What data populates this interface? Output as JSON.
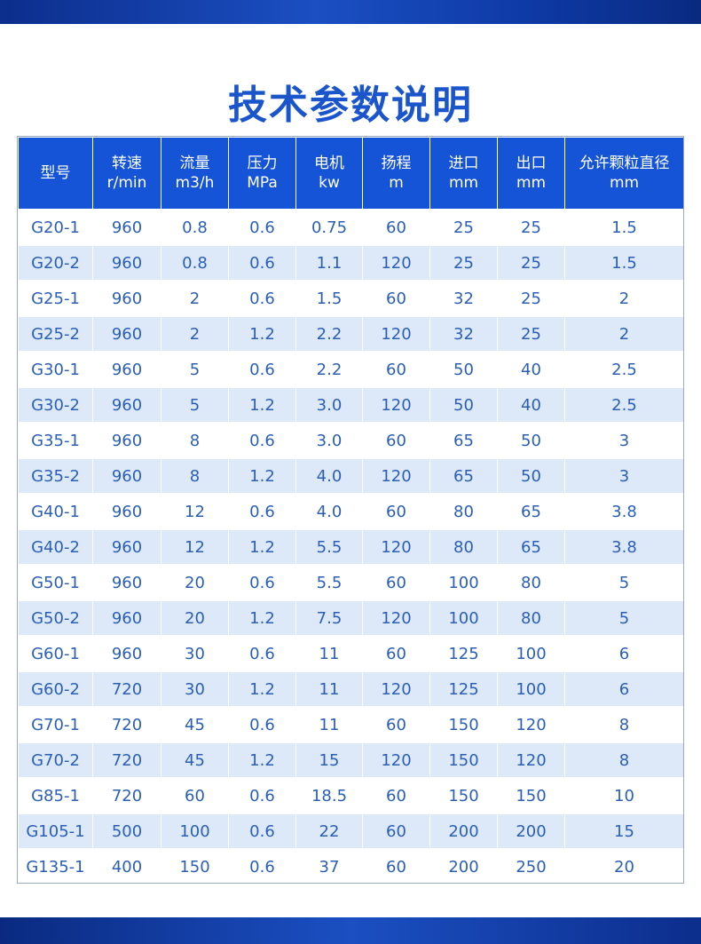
{
  "title": "技术参数说明",
  "table": {
    "headers": [
      {
        "line1": "型号",
        "line2": ""
      },
      {
        "line1": "转速",
        "line2": "r/min"
      },
      {
        "line1": "流量",
        "line2": "m3/h"
      },
      {
        "line1": "压力",
        "line2": "MPa"
      },
      {
        "line1": "电机",
        "line2": "kw"
      },
      {
        "line1": "扬程",
        "line2": "m"
      },
      {
        "line1": "进口",
        "line2": "mm"
      },
      {
        "line1": "出口",
        "line2": "mm"
      },
      {
        "line1": "允许颗粒直径",
        "line2": "mm"
      }
    ],
    "rows": [
      [
        "G20-1",
        "960",
        "0.8",
        "0.6",
        "0.75",
        "60",
        "25",
        "25",
        "1.5"
      ],
      [
        "G20-2",
        "960",
        "0.8",
        "0.6",
        "1.1",
        "120",
        "25",
        "25",
        "1.5"
      ],
      [
        "G25-1",
        "960",
        "2",
        "0.6",
        "1.5",
        "60",
        "32",
        "25",
        "2"
      ],
      [
        "G25-2",
        "960",
        "2",
        "1.2",
        "2.2",
        "120",
        "32",
        "25",
        "2"
      ],
      [
        "G30-1",
        "960",
        "5",
        "0.6",
        "2.2",
        "60",
        "50",
        "40",
        "2.5"
      ],
      [
        "G30-2",
        "960",
        "5",
        "1.2",
        "3.0",
        "120",
        "50",
        "40",
        "2.5"
      ],
      [
        "G35-1",
        "960",
        "8",
        "0.6",
        "3.0",
        "60",
        "65",
        "50",
        "3"
      ],
      [
        "G35-2",
        "960",
        "8",
        "1.2",
        "4.0",
        "120",
        "65",
        "50",
        "3"
      ],
      [
        "G40-1",
        "960",
        "12",
        "0.6",
        "4.0",
        "60",
        "80",
        "65",
        "3.8"
      ],
      [
        "G40-2",
        "960",
        "12",
        "1.2",
        "5.5",
        "120",
        "80",
        "65",
        "3.8"
      ],
      [
        "G50-1",
        "960",
        "20",
        "0.6",
        "5.5",
        "60",
        "100",
        "80",
        "5"
      ],
      [
        "G50-2",
        "960",
        "20",
        "1.2",
        "7.5",
        "120",
        "100",
        "80",
        "5"
      ],
      [
        "G60-1",
        "960",
        "30",
        "0.6",
        "11",
        "60",
        "125",
        "100",
        "6"
      ],
      [
        "G60-2",
        "720",
        "30",
        "1.2",
        "11",
        "120",
        "125",
        "100",
        "6"
      ],
      [
        "G70-1",
        "720",
        "45",
        "0.6",
        "11",
        "60",
        "150",
        "120",
        "8"
      ],
      [
        "G70-2",
        "720",
        "45",
        "1.2",
        "15",
        "120",
        "150",
        "120",
        "8"
      ],
      [
        "G85-1",
        "720",
        "60",
        "0.6",
        "18.5",
        "60",
        "150",
        "150",
        "10"
      ],
      [
        "G105-1",
        "500",
        "100",
        "0.6",
        "22",
        "60",
        "200",
        "200",
        "15"
      ],
      [
        "G135-1",
        "400",
        "150",
        "0.6",
        "37",
        "60",
        "200",
        "250",
        "20"
      ]
    ]
  },
  "colors": {
    "accent": "#1554d6",
    "title": "#1a55cc",
    "text": "#2a5fb5",
    "stripe": "#dde9f8"
  }
}
